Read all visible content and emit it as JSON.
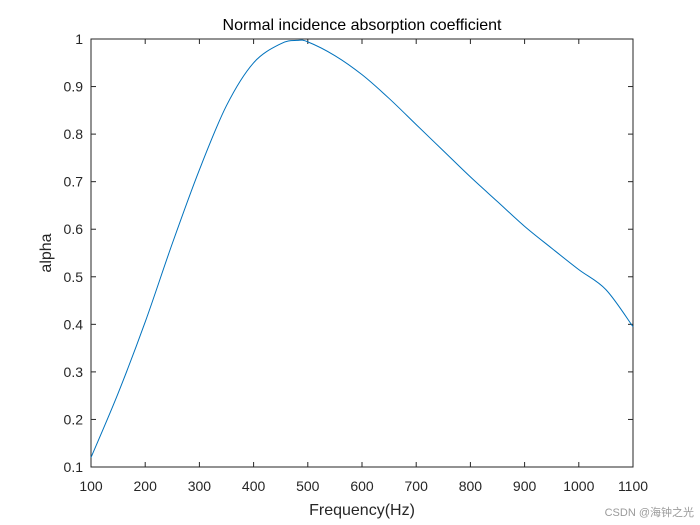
{
  "chart_data": {
    "type": "line",
    "title": "Normal incidence absorption coefficient",
    "xlabel": "Frequency(Hz)",
    "ylabel": "alpha",
    "xlim": [
      100,
      1100
    ],
    "ylim": [
      0.1,
      1
    ],
    "xticks": [
      100,
      200,
      300,
      400,
      500,
      600,
      700,
      800,
      900,
      1000,
      1100
    ],
    "yticks": [
      0.1,
      0.2,
      0.3,
      0.4,
      0.5,
      0.6,
      0.7,
      0.8,
      0.9,
      1
    ],
    "xtick_labels": [
      "100",
      "200",
      "300",
      "400",
      "500",
      "600",
      "700",
      "800",
      "900",
      "1000",
      "1100"
    ],
    "ytick_labels": [
      "0.1",
      "0.2",
      "0.3",
      "0.4",
      "0.5",
      "0.6",
      "0.7",
      "0.8",
      "0.9",
      "1"
    ],
    "grid": false,
    "box": true,
    "series": [
      {
        "color": "#0072BD",
        "x": [
          100,
          150,
          200,
          250,
          300,
          350,
          400,
          450,
          480,
          500,
          550,
          600,
          650,
          700,
          750,
          800,
          850,
          900,
          950,
          1000,
          1050,
          1100
        ],
        "y": [
          0.12,
          0.255,
          0.405,
          0.57,
          0.725,
          0.86,
          0.95,
          0.99,
          0.997,
          0.994,
          0.965,
          0.925,
          0.875,
          0.82,
          0.765,
          0.71,
          0.658,
          0.606,
          0.56,
          0.515,
          0.473,
          0.395
        ]
      }
    ]
  },
  "watermark": "CSDN @海钟之光"
}
